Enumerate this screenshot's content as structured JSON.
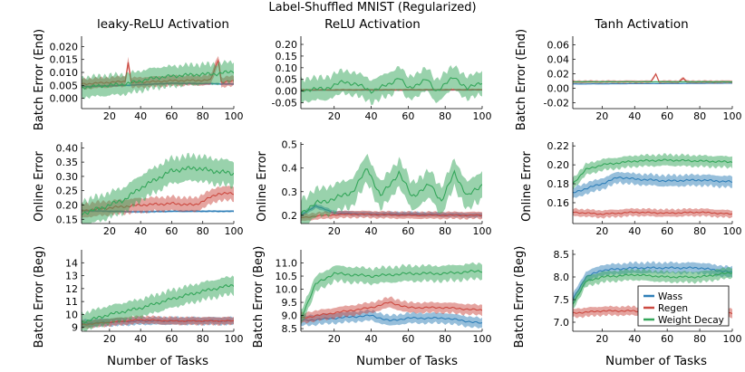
{
  "suptitle": "Label-Shuffled MNIST (Regularized)",
  "xlabel": "Number of Tasks",
  "columns": [
    "leaky-ReLU Activation",
    "ReLU Activation",
    "Tanh Activation"
  ],
  "row_ylabels": [
    "Batch Error (End)",
    "Online Error",
    "Batch Error (Beg)"
  ],
  "legend": {
    "entries": [
      "Wass",
      "Regen",
      "Weight Decay"
    ],
    "colors": [
      "#2f7fb8",
      "#cc4a41",
      "#34a65a"
    ]
  },
  "chart_data": [
    {
      "type": "line",
      "title": "leaky-ReLU Activation",
      "ylabel": "Batch Error (End)",
      "xlabel": "",
      "x_ticks": [
        "20",
        "40",
        "60",
        "80",
        "100"
      ],
      "xlim": [
        2,
        100
      ],
      "ylim": [
        -0.004,
        0.024
      ],
      "y_ticks": [
        "0.000",
        "0.005",
        "0.010",
        "0.015",
        "0.020"
      ],
      "y_tick_values": [
        0,
        0.005,
        0.01,
        0.015,
        0.02
      ],
      "series": [
        {
          "name": "Wass",
          "points": [
            [
              2,
              0.0045
            ],
            [
              30,
              0.005
            ],
            [
              60,
              0.0058
            ],
            [
              100,
              0.0055
            ]
          ],
          "band": 0.0004
        },
        {
          "name": "Regen",
          "points": [
            [
              2,
              0.0055
            ],
            [
              30,
              0.0065
            ],
            [
              32,
              0.014
            ],
            [
              34,
              0.006
            ],
            [
              60,
              0.0068
            ],
            [
              85,
              0.007
            ],
            [
              90,
              0.015
            ],
            [
              92,
              0.006
            ],
            [
              100,
              0.0068
            ]
          ],
          "band": 0.002
        },
        {
          "name": "Weight Decay",
          "points": [
            [
              2,
              0.0042
            ],
            [
              30,
              0.0055
            ],
            [
              50,
              0.008
            ],
            [
              70,
              0.009
            ],
            [
              90,
              0.0095
            ],
            [
              100,
              0.0105
            ]
          ],
          "band": 0.004
        }
      ]
    },
    {
      "type": "line",
      "title": "ReLU Activation",
      "ylabel": "",
      "xlabel": "",
      "x_ticks": [
        "20",
        "40",
        "60",
        "80",
        "100"
      ],
      "xlim": [
        2,
        100
      ],
      "ylim": [
        -0.075,
        0.235
      ],
      "y_ticks": [
        "-0.05",
        "0.00",
        "0.05",
        "0.10",
        "0.15",
        "0.20"
      ],
      "y_tick_values": [
        -0.05,
        0,
        0.05,
        0.1,
        0.15,
        0.2
      ],
      "series": [
        {
          "name": "Wass",
          "points": [
            [
              2,
              0.004
            ],
            [
              100,
              0.005
            ]
          ],
          "band": 0.003
        },
        {
          "name": "Regen",
          "points": [
            [
              2,
              0.005
            ],
            [
              100,
              0.006
            ]
          ],
          "band": 0.004
        },
        {
          "name": "Weight Decay",
          "points": [
            [
              2,
              0.005
            ],
            [
              15,
              0.01
            ],
            [
              25,
              0.04
            ],
            [
              32,
              0.03
            ],
            [
              40,
              0.0
            ],
            [
              50,
              0.03
            ],
            [
              55,
              0.06
            ],
            [
              60,
              0.01
            ],
            [
              70,
              0.05
            ],
            [
              75,
              0.0
            ],
            [
              85,
              0.06
            ],
            [
              92,
              0.01
            ],
            [
              100,
              0.04
            ]
          ],
          "band": 0.05
        }
      ]
    },
    {
      "type": "line",
      "title": "Tanh Activation",
      "ylabel": "",
      "xlabel": "",
      "x_ticks": [
        "20",
        "40",
        "60",
        "80",
        "100"
      ],
      "xlim": [
        2,
        100
      ],
      "ylim": [
        -0.028,
        0.072
      ],
      "y_ticks": [
        "-0.02",
        "0.00",
        "0.02",
        "0.04",
        "0.06"
      ],
      "y_tick_values": [
        -0.02,
        0,
        0.02,
        0.04,
        0.06
      ],
      "series": [
        {
          "name": "Wass",
          "points": [
            [
              2,
              0.006
            ],
            [
              100,
              0.007
            ]
          ],
          "band": 0.0005
        },
        {
          "name": "Regen",
          "points": [
            [
              2,
              0.009
            ],
            [
              50,
              0.009
            ],
            [
              53,
              0.02
            ],
            [
              55,
              0.009
            ],
            [
              67,
              0.009
            ],
            [
              70,
              0.014
            ],
            [
              72,
              0.009
            ],
            [
              100,
              0.009
            ]
          ],
          "band": 0.002
        },
        {
          "name": "Weight Decay",
          "points": [
            [
              2,
              0.009
            ],
            [
              100,
              0.009
            ]
          ],
          "band": 0.001
        }
      ]
    },
    {
      "type": "line",
      "title": "",
      "ylabel": "Online Error",
      "xlabel": "",
      "x_ticks": [
        "20",
        "40",
        "60",
        "80",
        "100"
      ],
      "xlim": [
        2,
        100
      ],
      "ylim": [
        0.135,
        0.42
      ],
      "y_ticks": [
        "0.15",
        "0.20",
        "0.25",
        "0.30",
        "0.35",
        "0.40"
      ],
      "y_tick_values": [
        0.15,
        0.2,
        0.25,
        0.3,
        0.35,
        0.4
      ],
      "series": [
        {
          "name": "Wass",
          "points": [
            [
              2,
              0.18
            ],
            [
              20,
              0.178
            ],
            [
              40,
              0.176
            ],
            [
              60,
              0.178
            ],
            [
              100,
              0.178
            ]
          ],
          "band": 0.004
        },
        {
          "name": "Regen",
          "points": [
            [
              2,
              0.18
            ],
            [
              20,
              0.19
            ],
            [
              40,
              0.2
            ],
            [
              60,
              0.205
            ],
            [
              75,
              0.2
            ],
            [
              90,
              0.24
            ],
            [
              100,
              0.24
            ]
          ],
          "band": 0.025
        },
        {
          "name": "Weight Decay",
          "points": [
            [
              2,
              0.17
            ],
            [
              15,
              0.19
            ],
            [
              30,
              0.22
            ],
            [
              40,
              0.26
            ],
            [
              50,
              0.29
            ],
            [
              60,
              0.32
            ],
            [
              75,
              0.33
            ],
            [
              85,
              0.32
            ],
            [
              100,
              0.31
            ]
          ],
          "band": 0.045
        }
      ]
    },
    {
      "type": "line",
      "title": "",
      "ylabel": "Online Error",
      "xlabel": "",
      "x_ticks": [
        "20",
        "40",
        "60",
        "80",
        "100"
      ],
      "xlim": [
        2,
        100
      ],
      "ylim": [
        0.165,
        0.51
      ],
      "y_ticks": [
        "0.2",
        "0.3",
        "0.4",
        "0.5"
      ],
      "y_tick_values": [
        0.2,
        0.3,
        0.4,
        0.5
      ],
      "series": [
        {
          "name": "Wass",
          "points": [
            [
              2,
              0.2
            ],
            [
              10,
              0.24
            ],
            [
              20,
              0.21
            ],
            [
              40,
              0.205
            ],
            [
              60,
              0.205
            ],
            [
              100,
              0.2
            ]
          ],
          "band": 0.01
        },
        {
          "name": "Regen",
          "points": [
            [
              2,
              0.19
            ],
            [
              15,
              0.2
            ],
            [
              30,
              0.205
            ],
            [
              60,
              0.2
            ],
            [
              100,
              0.2
            ]
          ],
          "band": 0.015
        },
        {
          "name": "Weight Decay",
          "points": [
            [
              2,
              0.21
            ],
            [
              10,
              0.25
            ],
            [
              20,
              0.27
            ],
            [
              30,
              0.3
            ],
            [
              38,
              0.4
            ],
            [
              45,
              0.28
            ],
            [
              55,
              0.38
            ],
            [
              62,
              0.28
            ],
            [
              72,
              0.33
            ],
            [
              78,
              0.26
            ],
            [
              85,
              0.38
            ],
            [
              92,
              0.28
            ],
            [
              100,
              0.33
            ]
          ],
          "band": 0.06
        }
      ]
    },
    {
      "type": "line",
      "title": "",
      "ylabel": "Online Error",
      "xlabel": "",
      "x_ticks": [
        "20",
        "40",
        "60",
        "80",
        "100"
      ],
      "xlim": [
        2,
        100
      ],
      "ylim": [
        0.138,
        0.224
      ],
      "y_ticks": [
        "0.16",
        "0.18",
        "0.20",
        "0.22"
      ],
      "y_tick_values": [
        0.16,
        0.18,
        0.2,
        0.22
      ],
      "series": [
        {
          "name": "Wass",
          "points": [
            [
              2,
              0.17
            ],
            [
              10,
              0.175
            ],
            [
              20,
              0.18
            ],
            [
              30,
              0.187
            ],
            [
              40,
              0.185
            ],
            [
              60,
              0.183
            ],
            [
              80,
              0.184
            ],
            [
              100,
              0.182
            ]
          ],
          "band": 0.006
        },
        {
          "name": "Regen",
          "points": [
            [
              2,
              0.15
            ],
            [
              20,
              0.148
            ],
            [
              40,
              0.15
            ],
            [
              60,
              0.149
            ],
            [
              80,
              0.15
            ],
            [
              100,
              0.148
            ]
          ],
          "band": 0.004
        },
        {
          "name": "Weight Decay",
          "points": [
            [
              2,
              0.18
            ],
            [
              10,
              0.195
            ],
            [
              20,
              0.2
            ],
            [
              40,
              0.204
            ],
            [
              60,
              0.205
            ],
            [
              80,
              0.204
            ],
            [
              100,
              0.203
            ]
          ],
          "band": 0.006
        }
      ]
    },
    {
      "type": "line",
      "title": "",
      "ylabel": "Batch Error (Beg)",
      "xlabel": "Number of Tasks",
      "x_ticks": [
        "20",
        "40",
        "60",
        "80",
        "100"
      ],
      "xlim": [
        2,
        100
      ],
      "ylim": [
        8.7,
        15.0
      ],
      "y_ticks": [
        "9",
        "10",
        "11",
        "12",
        "13",
        "14"
      ],
      "y_tick_values": [
        9,
        10,
        11,
        12,
        13,
        14
      ],
      "series": [
        {
          "name": "Wass",
          "points": [
            [
              2,
              9.3
            ],
            [
              20,
              9.4
            ],
            [
              40,
              9.5
            ],
            [
              60,
              9.5
            ],
            [
              100,
              9.5
            ]
          ],
          "band": 0.3
        },
        {
          "name": "Regen",
          "points": [
            [
              2,
              9.2
            ],
            [
              20,
              9.4
            ],
            [
              40,
              9.6
            ],
            [
              60,
              9.5
            ],
            [
              100,
              9.5
            ]
          ],
          "band": 0.3
        },
        {
          "name": "Weight Decay",
          "points": [
            [
              2,
              9.4
            ],
            [
              20,
              10.0
            ],
            [
              40,
              10.5
            ],
            [
              60,
              11.2
            ],
            [
              80,
              11.8
            ],
            [
              100,
              12.3
            ]
          ],
          "band": 0.7
        }
      ]
    },
    {
      "type": "line",
      "title": "",
      "ylabel": "Batch Error (Beg)",
      "xlabel": "Number of Tasks",
      "x_ticks": [
        "20",
        "40",
        "60",
        "80",
        "100"
      ],
      "xlim": [
        2,
        100
      ],
      "ylim": [
        8.4,
        11.5
      ],
      "y_ticks": [
        "8.5",
        "9.0",
        "9.5",
        "10.0",
        "10.5",
        "11.0"
      ],
      "y_tick_values": [
        8.5,
        9.0,
        9.5,
        10.0,
        10.5,
        11.0
      ],
      "series": [
        {
          "name": "Wass",
          "points": [
            [
              2,
              8.8
            ],
            [
              20,
              8.9
            ],
            [
              40,
              9.0
            ],
            [
              50,
              8.8
            ],
            [
              60,
              8.9
            ],
            [
              80,
              8.9
            ],
            [
              100,
              8.7
            ]
          ],
          "band": 0.2
        },
        {
          "name": "Regen",
          "points": [
            [
              2,
              8.9
            ],
            [
              20,
              9.1
            ],
            [
              40,
              9.3
            ],
            [
              50,
              9.5
            ],
            [
              60,
              9.3
            ],
            [
              80,
              9.3
            ],
            [
              100,
              9.2
            ]
          ],
          "band": 0.2
        },
        {
          "name": "Weight Decay",
          "points": [
            [
              2,
              8.9
            ],
            [
              10,
              10.2
            ],
            [
              20,
              10.6
            ],
            [
              40,
              10.5
            ],
            [
              60,
              10.6
            ],
            [
              80,
              10.6
            ],
            [
              100,
              10.7
            ]
          ],
          "band": 0.3
        }
      ]
    },
    {
      "type": "line",
      "title": "",
      "ylabel": "Batch Error (Beg)",
      "xlabel": "Number of Tasks",
      "x_ticks": [
        "20",
        "40",
        "60",
        "80",
        "100"
      ],
      "xlim": [
        2,
        100
      ],
      "ylim": [
        6.8,
        8.6
      ],
      "y_ticks": [
        "7.0",
        "7.5",
        "8.0",
        "8.5"
      ],
      "y_tick_values": [
        7.0,
        7.5,
        8.0,
        8.5
      ],
      "series": [
        {
          "name": "Wass",
          "points": [
            [
              2,
              7.5
            ],
            [
              10,
              8.0
            ],
            [
              20,
              8.15
            ],
            [
              40,
              8.2
            ],
            [
              60,
              8.2
            ],
            [
              80,
              8.2
            ],
            [
              100,
              8.1
            ]
          ],
          "band": 0.12
        },
        {
          "name": "Regen",
          "points": [
            [
              2,
              7.2
            ],
            [
              20,
              7.25
            ],
            [
              40,
              7.25
            ],
            [
              60,
              7.2
            ],
            [
              80,
              7.2
            ],
            [
              100,
              7.2
            ]
          ],
          "band": 0.1
        },
        {
          "name": "Weight Decay",
          "points": [
            [
              2,
              7.4
            ],
            [
              10,
              7.9
            ],
            [
              20,
              8.0
            ],
            [
              40,
              8.05
            ],
            [
              60,
              8.0
            ],
            [
              80,
              8.0
            ],
            [
              100,
              8.1
            ]
          ],
          "band": 0.12
        }
      ]
    }
  ]
}
